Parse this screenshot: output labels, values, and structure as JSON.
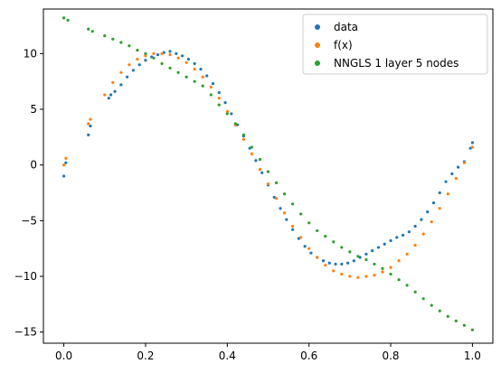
{
  "chart_data": {
    "type": "scatter",
    "xlim": [
      -0.05,
      1.05
    ],
    "ylim": [
      -16,
      14
    ],
    "xticks": [
      0.0,
      0.2,
      0.4,
      0.6,
      0.8,
      1.0
    ],
    "xtick_labels": [
      "0.0",
      "0.2",
      "0.4",
      "0.6",
      "0.8",
      "1.0"
    ],
    "yticks": [
      -15,
      -10,
      -5,
      0,
      5,
      10
    ],
    "ytick_labels": [
      "−15",
      "−10",
      "−5",
      "0",
      "5",
      "10"
    ],
    "grid": false,
    "legend_position": "top-right",
    "series": [
      {
        "name": "data",
        "color": "#1f77b4",
        "x": [
          0.0,
          0.005,
          0.06,
          0.065,
          0.11,
          0.115,
          0.125,
          0.14,
          0.155,
          0.17,
          0.185,
          0.2,
          0.215,
          0.23,
          0.245,
          0.26,
          0.275,
          0.29,
          0.305,
          0.32,
          0.335,
          0.35,
          0.365,
          0.38,
          0.395,
          0.41,
          0.425,
          0.44,
          0.455,
          0.47,
          0.485,
          0.5,
          0.515,
          0.53,
          0.545,
          0.56,
          0.575,
          0.59,
          0.605,
          0.62,
          0.635,
          0.65,
          0.665,
          0.68,
          0.695,
          0.71,
          0.725,
          0.74,
          0.755,
          0.77,
          0.785,
          0.8,
          0.815,
          0.83,
          0.845,
          0.86,
          0.875,
          0.89,
          0.905,
          0.92,
          0.935,
          0.95,
          0.965,
          0.98,
          0.995,
          1.0
        ],
        "y": [
          -1.0,
          0.2,
          2.7,
          3.5,
          6.0,
          6.3,
          6.6,
          7.2,
          7.9,
          8.5,
          9.0,
          9.4,
          9.7,
          9.9,
          10.1,
          10.2,
          10.0,
          9.8,
          9.5,
          9.1,
          8.6,
          8.0,
          7.3,
          6.5,
          5.6,
          4.6,
          3.6,
          2.6,
          1.5,
          0.4,
          -0.7,
          -1.8,
          -2.9,
          -3.9,
          -4.9,
          -5.8,
          -6.6,
          -7.3,
          -7.9,
          -8.3,
          -8.6,
          -8.8,
          -8.9,
          -8.9,
          -8.8,
          -8.6,
          -8.3,
          -8.0,
          -7.7,
          -7.4,
          -7.1,
          -6.8,
          -6.5,
          -6.3,
          -6.0,
          -5.5,
          -4.9,
          -4.2,
          -3.4,
          -2.5,
          -1.5,
          -0.8,
          -0.2,
          0.3,
          1.5,
          2.0
        ]
      },
      {
        "name": "f(x)",
        "color": "#ff7f0e",
        "x": [
          0.0,
          0.005,
          0.06,
          0.065,
          0.1,
          0.12,
          0.14,
          0.16,
          0.18,
          0.2,
          0.22,
          0.24,
          0.26,
          0.28,
          0.3,
          0.32,
          0.34,
          0.36,
          0.38,
          0.4,
          0.42,
          0.44,
          0.46,
          0.48,
          0.5,
          0.52,
          0.54,
          0.56,
          0.58,
          0.6,
          0.62,
          0.64,
          0.66,
          0.68,
          0.7,
          0.72,
          0.74,
          0.76,
          0.78,
          0.8,
          0.82,
          0.84,
          0.86,
          0.88,
          0.9,
          0.92,
          0.94,
          0.96,
          0.98,
          1.0
        ],
        "y": [
          0.0,
          0.6,
          3.7,
          4.1,
          6.3,
          7.4,
          8.3,
          9.0,
          9.5,
          9.8,
          10.0,
          10.0,
          9.9,
          9.6,
          9.2,
          8.6,
          7.9,
          7.0,
          6.0,
          4.8,
          3.6,
          2.3,
          1.0,
          -0.4,
          -1.7,
          -3.0,
          -4.3,
          -5.5,
          -6.5,
          -7.5,
          -8.3,
          -9.0,
          -9.5,
          -9.8,
          -10.0,
          -10.1,
          -10.0,
          -9.9,
          -9.6,
          -9.2,
          -8.6,
          -8.0,
          -7.2,
          -6.2,
          -5.1,
          -3.9,
          -2.6,
          -1.2,
          0.2,
          1.6
        ]
      },
      {
        "name": "NNGLS 1 layer 5 nodes",
        "color": "#2ca02c",
        "x": [
          0.0,
          0.01,
          0.06,
          0.07,
          0.1,
          0.12,
          0.14,
          0.16,
          0.18,
          0.2,
          0.22,
          0.24,
          0.26,
          0.28,
          0.3,
          0.32,
          0.34,
          0.36,
          0.38,
          0.4,
          0.42,
          0.44,
          0.46,
          0.48,
          0.5,
          0.52,
          0.54,
          0.56,
          0.58,
          0.6,
          0.62,
          0.64,
          0.66,
          0.68,
          0.7,
          0.72,
          0.74,
          0.76,
          0.78,
          0.8,
          0.82,
          0.84,
          0.86,
          0.88,
          0.9,
          0.92,
          0.94,
          0.96,
          0.98,
          1.0
        ],
        "y": [
          13.2,
          13.0,
          12.2,
          12.0,
          11.6,
          11.3,
          11.0,
          10.7,
          10.3,
          10.0,
          9.6,
          9.1,
          8.7,
          8.3,
          7.9,
          7.5,
          7.1,
          6.3,
          5.4,
          4.6,
          3.7,
          2.7,
          1.6,
          0.5,
          -0.6,
          -1.6,
          -2.6,
          -3.5,
          -4.4,
          -5.2,
          -5.9,
          -6.4,
          -6.9,
          -7.4,
          -7.8,
          -8.2,
          -8.5,
          -8.9,
          -9.3,
          -9.8,
          -10.3,
          -10.8,
          -11.4,
          -12.0,
          -12.6,
          -13.1,
          -13.6,
          -14.0,
          -14.4,
          -14.8
        ]
      }
    ]
  }
}
